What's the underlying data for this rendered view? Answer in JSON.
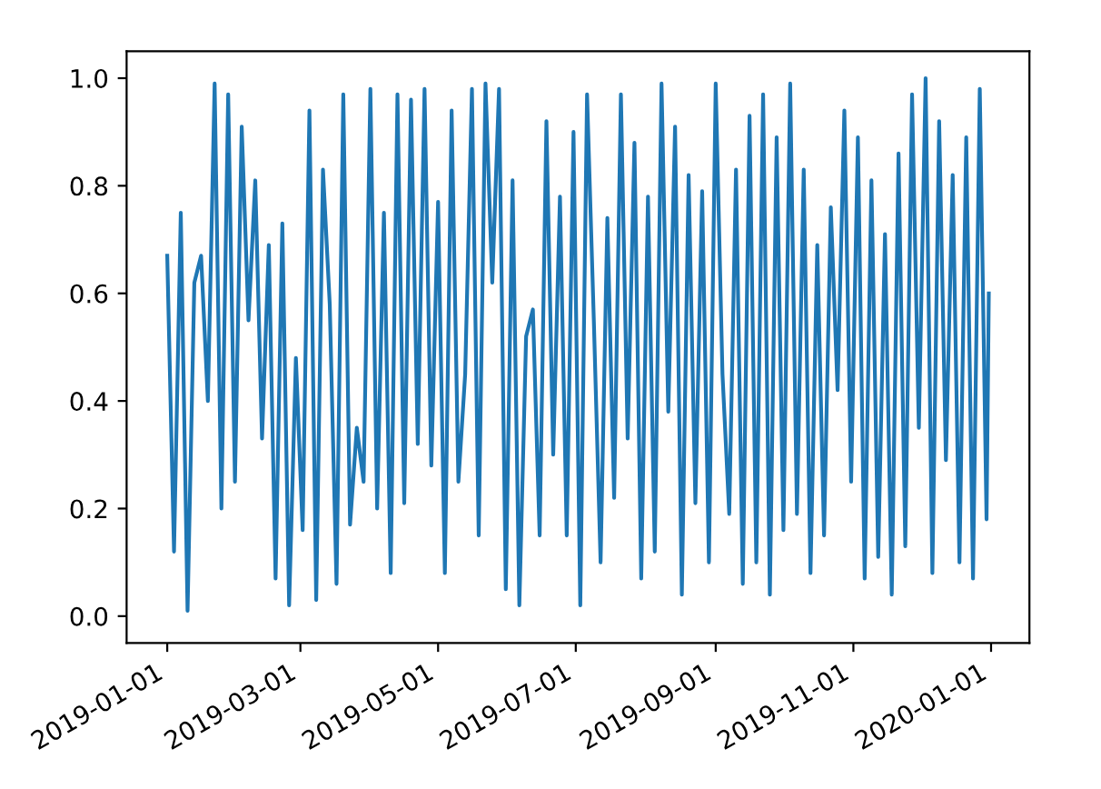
{
  "chart_data": {
    "type": "line",
    "color": "#1f77b4",
    "x": [
      "2019-01-01",
      "2019-01-04",
      "2019-01-07",
      "2019-01-10",
      "2019-01-13",
      "2019-01-16",
      "2019-01-19",
      "2019-01-22",
      "2019-01-25",
      "2019-01-28",
      "2019-01-31",
      "2019-02-03",
      "2019-02-06",
      "2019-02-09",
      "2019-02-12",
      "2019-02-15",
      "2019-02-18",
      "2019-02-21",
      "2019-02-24",
      "2019-02-27",
      "2019-03-02",
      "2019-03-05",
      "2019-03-08",
      "2019-03-11",
      "2019-03-14",
      "2019-03-17",
      "2019-03-20",
      "2019-03-23",
      "2019-03-26",
      "2019-03-29",
      "2019-04-01",
      "2019-04-04",
      "2019-04-07",
      "2019-04-10",
      "2019-04-13",
      "2019-04-16",
      "2019-04-19",
      "2019-04-22",
      "2019-04-25",
      "2019-04-28",
      "2019-05-01",
      "2019-05-04",
      "2019-05-07",
      "2019-05-10",
      "2019-05-13",
      "2019-05-16",
      "2019-05-19",
      "2019-05-22",
      "2019-05-25",
      "2019-05-28",
      "2019-05-31",
      "2019-06-03",
      "2019-06-06",
      "2019-06-09",
      "2019-06-12",
      "2019-06-15",
      "2019-06-18",
      "2019-06-21",
      "2019-06-24",
      "2019-06-27",
      "2019-06-30",
      "2019-07-03",
      "2019-07-06",
      "2019-07-09",
      "2019-07-12",
      "2019-07-15",
      "2019-07-18",
      "2019-07-21",
      "2019-07-24",
      "2019-07-27",
      "2019-07-30",
      "2019-08-02",
      "2019-08-05",
      "2019-08-08",
      "2019-08-11",
      "2019-08-14",
      "2019-08-17",
      "2019-08-20",
      "2019-08-23",
      "2019-08-26",
      "2019-08-29",
      "2019-09-01",
      "2019-09-04",
      "2019-09-07",
      "2019-09-10",
      "2019-09-13",
      "2019-09-16",
      "2019-09-19",
      "2019-09-22",
      "2019-09-25",
      "2019-09-28",
      "2019-10-01",
      "2019-10-04",
      "2019-10-07",
      "2019-10-10",
      "2019-10-13",
      "2019-10-16",
      "2019-10-19",
      "2019-10-22",
      "2019-10-25",
      "2019-10-28",
      "2019-10-31",
      "2019-11-03",
      "2019-11-06",
      "2019-11-09",
      "2019-11-12",
      "2019-11-15",
      "2019-11-18",
      "2019-11-21",
      "2019-11-24",
      "2019-11-27",
      "2019-11-30",
      "2019-12-03",
      "2019-12-06",
      "2019-12-09",
      "2019-12-12",
      "2019-12-15",
      "2019-12-18",
      "2019-12-21",
      "2019-12-24",
      "2019-12-27",
      "2019-12-30",
      "2019-12-31"
    ],
    "values": [
      0.67,
      0.12,
      0.75,
      0.01,
      0.62,
      0.67,
      0.4,
      0.99,
      0.2,
      0.97,
      0.25,
      0.91,
      0.55,
      0.81,
      0.33,
      0.69,
      0.07,
      0.73,
      0.02,
      0.48,
      0.16,
      0.94,
      0.03,
      0.83,
      0.58,
      0.06,
      0.97,
      0.17,
      0.35,
      0.25,
      0.98,
      0.2,
      0.75,
      0.08,
      0.97,
      0.21,
      0.96,
      0.32,
      0.98,
      0.28,
      0.77,
      0.08,
      0.94,
      0.25,
      0.45,
      0.98,
      0.15,
      0.99,
      0.62,
      0.98,
      0.05,
      0.81,
      0.02,
      0.52,
      0.57,
      0.15,
      0.92,
      0.3,
      0.78,
      0.15,
      0.9,
      0.02,
      0.97,
      0.55,
      0.1,
      0.74,
      0.22,
      0.97,
      0.33,
      0.88,
      0.07,
      0.78,
      0.12,
      0.99,
      0.38,
      0.91,
      0.04,
      0.82,
      0.21,
      0.79,
      0.1,
      0.99,
      0.45,
      0.19,
      0.83,
      0.06,
      0.93,
      0.1,
      0.97,
      0.04,
      0.89,
      0.16,
      0.99,
      0.19,
      0.83,
      0.08,
      0.69,
      0.15,
      0.76,
      0.42,
      0.94,
      0.25,
      0.89,
      0.07,
      0.81,
      0.11,
      0.71,
      0.04,
      0.86,
      0.13,
      0.97,
      0.35,
      1.0,
      0.08,
      0.92,
      0.29,
      0.82,
      0.1,
      0.89,
      0.07,
      0.98,
      0.18,
      0.6
    ],
    "xlim": [
      "2018-12-14",
      "2020-01-18"
    ],
    "xticks": [
      "2019-01-01",
      "2019-03-01",
      "2019-05-01",
      "2019-07-01",
      "2019-09-01",
      "2019-11-01",
      "2020-01-01"
    ],
    "ylim": [
      -0.05,
      1.05
    ],
    "yticks": [
      {
        "value": 0,
        "label": "0.0"
      },
      {
        "value": 0.2,
        "label": "0.2"
      },
      {
        "value": 0.4,
        "label": "0.4"
      },
      {
        "value": 0.6,
        "label": "0.6"
      },
      {
        "value": 0.8,
        "label": "0.8"
      },
      {
        "value": 1.0,
        "label": "1.0"
      }
    ],
    "grid": false,
    "legend": false
  }
}
